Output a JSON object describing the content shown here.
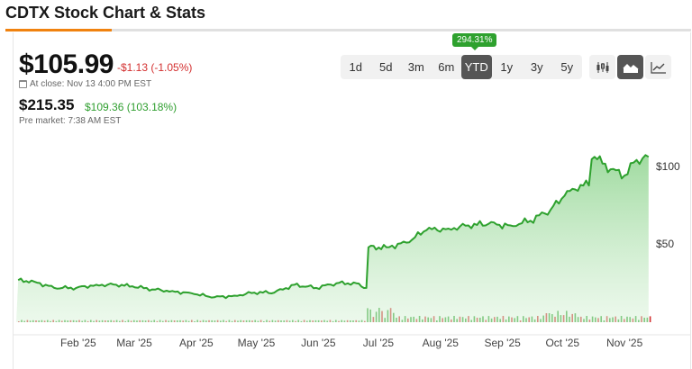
{
  "header": {
    "title": "CDTX Stock Chart & Stats"
  },
  "quote": {
    "price": "$105.99",
    "change": "-$1.13 (-1.05%)",
    "close_time": "At close: Nov 13 4:00 PM EST",
    "pre_price": "$215.35",
    "pre_change": "$109.36 (103.18%)",
    "pre_time": "Pre market: 7:38 AM EST"
  },
  "range": {
    "options": [
      "1d",
      "5d",
      "3m",
      "6m",
      "YTD",
      "1y",
      "3y",
      "5y"
    ],
    "selected": "YTD",
    "badge": "294.31%"
  },
  "chart_types": [
    {
      "icon": "candlestick-icon",
      "active": false
    },
    {
      "icon": "area-chart-icon",
      "active": true
    },
    {
      "icon": "line-chart-icon",
      "active": false
    }
  ],
  "colors": {
    "line": "#2ea12e",
    "fill": "#8fd48f",
    "up_volume": "#2ea12e",
    "down_volume": "#d32f2f",
    "accent": "#f0820f"
  },
  "chart_data": {
    "type": "area",
    "title": "",
    "x": [
      "2025-01-02",
      "2025-01-10",
      "2025-01-20",
      "2025-01-31",
      "2025-02-10",
      "2025-02-20",
      "2025-02-28",
      "2025-03-10",
      "2025-03-20",
      "2025-03-31",
      "2025-04-10",
      "2025-04-20",
      "2025-04-30",
      "2025-05-10",
      "2025-05-20",
      "2025-05-31",
      "2025-06-10",
      "2025-06-20",
      "2025-06-25",
      "2025-06-26",
      "2025-07-05",
      "2025-07-15",
      "2025-07-25",
      "2025-08-05",
      "2025-08-15",
      "2025-08-25",
      "2025-09-05",
      "2025-09-15",
      "2025-09-25",
      "2025-10-02",
      "2025-10-10",
      "2025-10-17",
      "2025-10-25",
      "2025-11-01",
      "2025-11-07",
      "2025-11-13"
    ],
    "values": [
      27,
      26,
      22,
      22,
      24,
      24,
      23,
      21,
      20,
      18,
      16,
      17,
      19,
      19,
      24,
      22,
      25,
      25,
      22,
      48,
      48,
      51,
      59,
      60,
      62,
      63,
      62,
      65,
      72,
      81,
      88,
      106,
      98,
      94,
      104,
      106
    ],
    "x_ticks": [
      "Feb '25",
      "Mar '25",
      "Apr '25",
      "May '25",
      "Jun '25",
      "Jul '25",
      "Aug '25",
      "Sep '25",
      "Oct '25",
      "Nov '25"
    ],
    "y_ticks": [
      "$50",
      "$100"
    ],
    "ylim": [
      0,
      120
    ],
    "volume_shown": true,
    "legend": "none"
  }
}
